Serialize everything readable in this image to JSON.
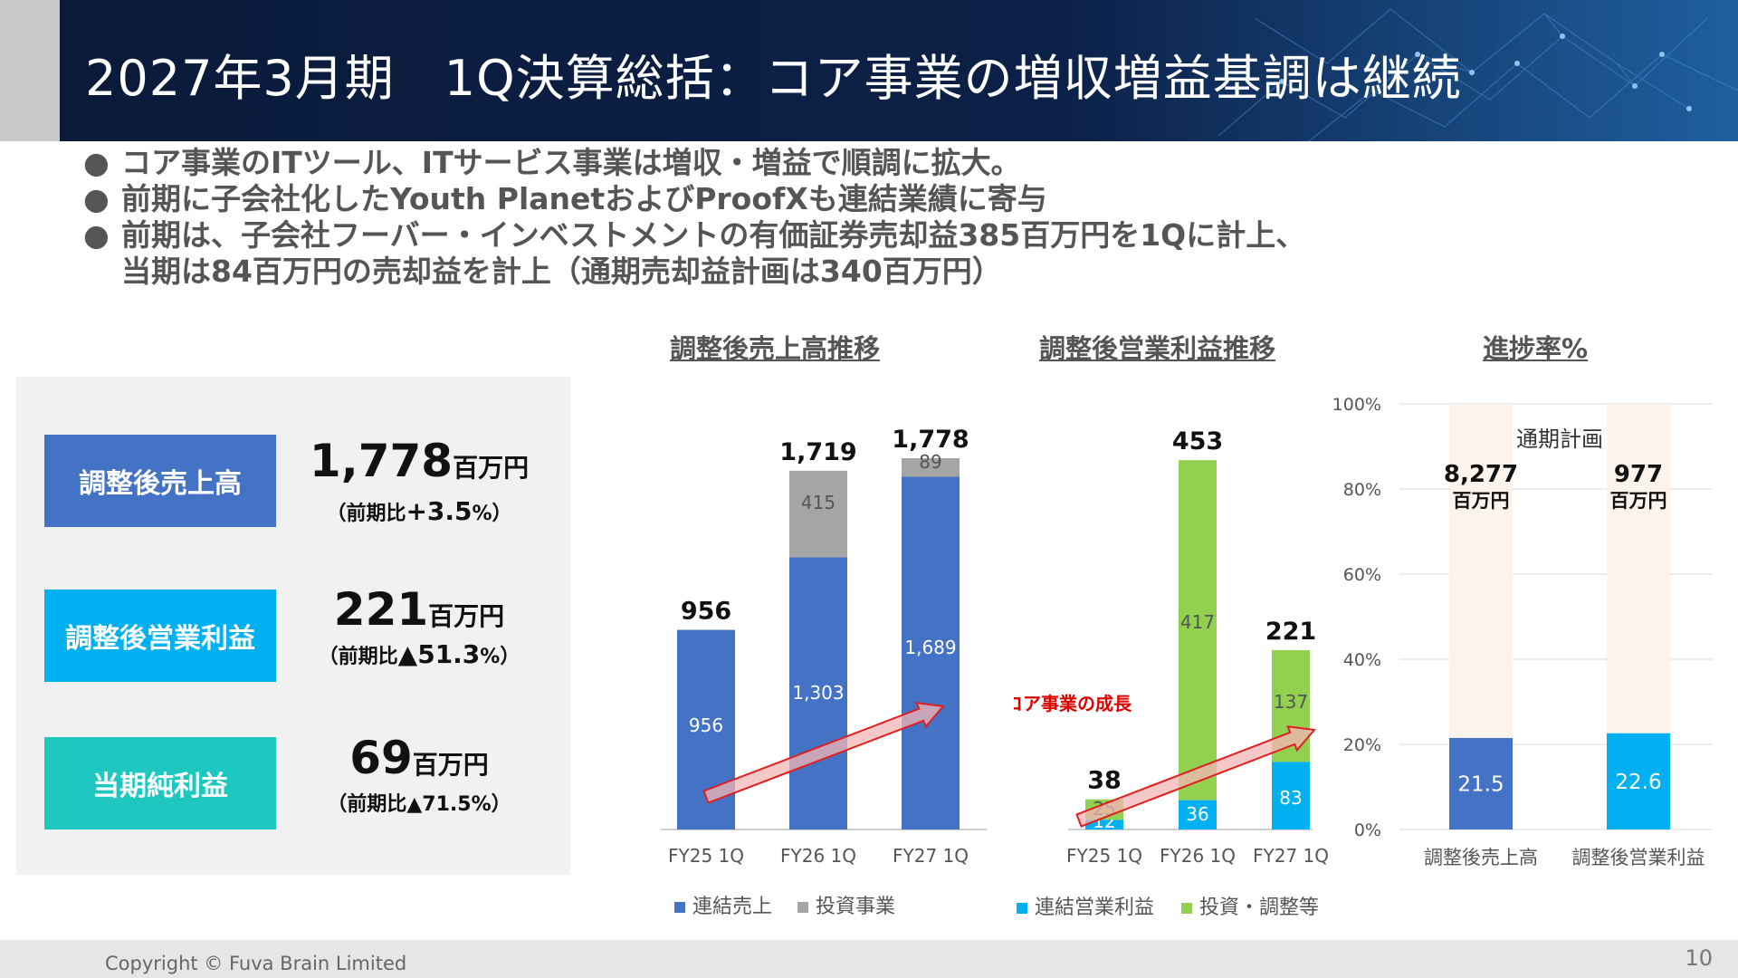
{
  "header": {
    "title": "2027年3月期　1Q決算総括：コア事業の増収増益基調は継続"
  },
  "bullets": [
    "コア事業のITツール、ITサービス事業は増収・増益で順調に拡大。",
    "前期に子会社化したYouth PlanetおよびProofXも連結業績に寄与",
    "前期は、子会社フーバー・インベストメントの有価証券売却益385百万円を1Qに計上、"
  ],
  "bullet_continuation": "当期は84百万円の売却益を計上（通期売却益計画は340百万円）",
  "bullet_symbol": "●",
  "kpis": [
    {
      "label": "調整後売上高",
      "value": "1,778",
      "unit": "百万円",
      "sub_prefix": "（前期比",
      "sub_value": "+3.5",
      "sub_suffix": "%）",
      "color": "#4472c4"
    },
    {
      "label": "調整後営業利益",
      "value": "221",
      "unit": "百万円",
      "sub_prefix": "（前期比",
      "sub_value": "▲51.3",
      "sub_suffix": "%）",
      "color": "#00b0f0"
    },
    {
      "label": "当期純利益",
      "value": "69",
      "unit": "百万円",
      "sub_prefix": "（前期比▲71.5%）",
      "sub_value": "",
      "sub_suffix": "",
      "color": "#1ec8c0"
    }
  ],
  "chart_titles": {
    "sales": "調整後売上高推移",
    "op": "調整後営業利益推移",
    "progress": "進捗率%"
  },
  "chart_data": [
    {
      "type": "bar",
      "title": "調整後売上高推移",
      "stacked": true,
      "categories": [
        "FY25 1Q",
        "FY26 1Q",
        "FY27 1Q"
      ],
      "series": [
        {
          "name": "連結売上",
          "values": [
            956,
            1303,
            1689
          ],
          "color": "#4472c4",
          "labels": [
            "956",
            "1,303",
            "1,689"
          ]
        },
        {
          "name": "投資事業",
          "values": [
            0,
            415,
            89
          ],
          "color": "#a5a5a5",
          "labels": [
            "",
            "415",
            "89"
          ]
        }
      ],
      "totals": [
        "956",
        "1,719",
        "1,778"
      ],
      "ylim": [
        0,
        2000
      ],
      "legend": "bottom",
      "grid": false
    },
    {
      "type": "bar",
      "title": "調整後営業利益推移",
      "stacked": true,
      "categories": [
        "FY25 1Q",
        "FY26 1Q",
        "FY27 1Q"
      ],
      "series": [
        {
          "name": "連結営業利益",
          "values": [
            12,
            36,
            83
          ],
          "color": "#00b0f0",
          "labels": [
            "12",
            "36",
            "83"
          ]
        },
        {
          "name": "投資・調整等",
          "values": [
            25,
            417,
            137
          ],
          "color": "#92d050",
          "labels": [
            "25",
            "417",
            "137"
          ]
        }
      ],
      "totals": [
        "38",
        "453",
        "221"
      ],
      "annotation": "コア事業の成長",
      "ylim": [
        0,
        453
      ],
      "legend": "bottom",
      "grid": false
    },
    {
      "type": "bar",
      "title": "進捗率%",
      "categories": [
        "調整後売上高",
        "調整後営業利益"
      ],
      "series": [
        {
          "name": "進捗率",
          "values": [
            21.5,
            22.6
          ],
          "colors": [
            "#4472c4",
            "#00b0f0"
          ],
          "labels": [
            "21.5",
            "22.6"
          ]
        }
      ],
      "plan_label": "通期計画",
      "plan_values": [
        "8,277",
        "977"
      ],
      "plan_unit": "百万円",
      "yticks": [
        "0%",
        "20%",
        "40%",
        "60%",
        "80%",
        "100%"
      ],
      "ylim": [
        0,
        100
      ],
      "grid": true
    }
  ],
  "footer": {
    "copyright": "Copyright © Fuva Brain Limited",
    "page": "10"
  }
}
